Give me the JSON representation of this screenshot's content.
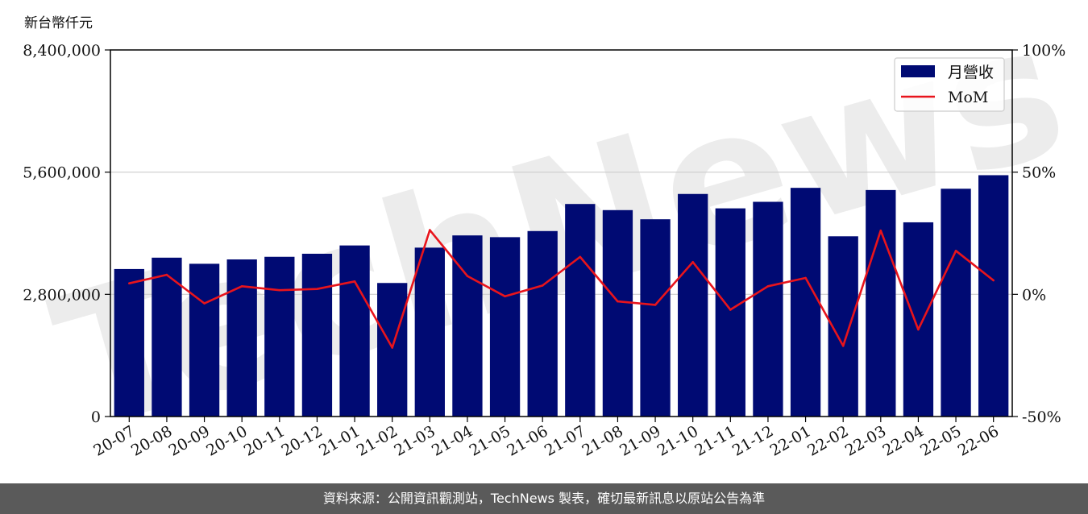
{
  "unit_label": "新台幣仟元",
  "footer_text": "資料來源：公開資訊觀測站，TechNews 製表，確切最新訊息以原站公告為準",
  "watermark_text": "TechNews",
  "colors": {
    "bar": "#000a73",
    "line": "#e8141c",
    "grid": "#cccccc",
    "footer": "#5a5a5a"
  },
  "chart_data": {
    "type": "bar",
    "categories": [
      "20-07",
      "20-08",
      "20-09",
      "20-10",
      "20-11",
      "20-12",
      "21-01",
      "21-02",
      "21-03",
      "21-04",
      "21-05",
      "21-06",
      "21-07",
      "21-08",
      "21-09",
      "21-10",
      "21-11",
      "21-12",
      "22-01",
      "22-02",
      "22-03",
      "22-04",
      "22-05",
      "22-06"
    ],
    "series": [
      {
        "name": "月營收",
        "type": "bar",
        "axis": "left",
        "values": [
          3380000,
          3640000,
          3500000,
          3600000,
          3660000,
          3730000,
          3920000,
          3060000,
          3870000,
          4150000,
          4110000,
          4250000,
          4870000,
          4730000,
          4520000,
          5100000,
          4770000,
          4920000,
          5240000,
          4130000,
          5190000,
          4450000,
          5220000,
          5530000
        ]
      },
      {
        "name": "MoM",
        "type": "line",
        "axis": "right",
        "values": [
          4.5,
          8.0,
          -3.7,
          3.3,
          1.7,
          2.2,
          5.3,
          -21.8,
          26.3,
          7.5,
          -0.8,
          3.6,
          15.3,
          -2.9,
          -4.3,
          13.2,
          -6.3,
          3.3,
          6.7,
          -21.1,
          26.1,
          -14.4,
          17.8,
          5.7
        ]
      }
    ],
    "y_left": {
      "ylim": [
        0,
        8400000
      ],
      "ticks": [
        "0",
        "2,800,000",
        "5,600,000",
        "8,400,000"
      ],
      "tick_values": [
        0,
        2800000,
        5600000,
        8400000
      ]
    },
    "y_right": {
      "ylim": [
        -50,
        100
      ],
      "ticks": [
        "-50%",
        "0%",
        "50%",
        "100%"
      ],
      "tick_values": [
        -50,
        0,
        50,
        100
      ]
    },
    "grid": "horizontal",
    "legend_position": "top-right"
  }
}
